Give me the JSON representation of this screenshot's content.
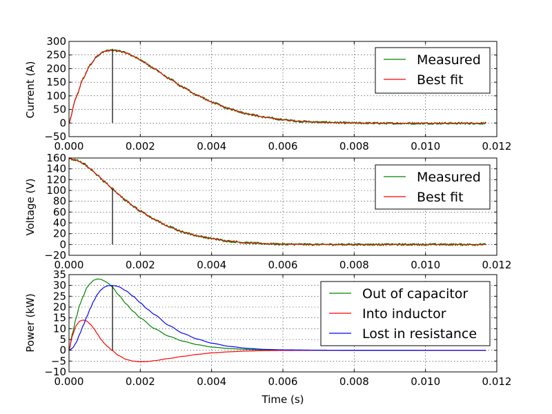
{
  "figure": {
    "xlabel": "Time (s)"
  },
  "colors": {
    "green": "#008000",
    "red": "#ff0000",
    "blue": "#0000ff",
    "marker": "#000000"
  },
  "chart_data": [
    {
      "type": "line",
      "ylabel": "Current (A)",
      "xlim": [
        0.0,
        0.012
      ],
      "ylim": [
        -50,
        300
      ],
      "xticks": [
        "0.000",
        "0.002",
        "0.004",
        "0.006",
        "0.008",
        "0.010",
        "0.012"
      ],
      "xtick_values": [
        0.0,
        0.002,
        0.004,
        0.006,
        0.008,
        0.01,
        0.012
      ],
      "yticks": [
        "−50",
        "0",
        "50",
        "100",
        "150",
        "200",
        "250",
        "300"
      ],
      "ytick_values": [
        -50,
        0,
        50,
        100,
        150,
        200,
        250,
        300
      ],
      "grid": true,
      "legend_position": "top-right",
      "marker_x": 0.00122,
      "marker_range": [
        0,
        268
      ],
      "series": [
        {
          "name": "Measured",
          "color": "green",
          "noisy": true,
          "x": [
            0.0,
            0.0002,
            0.0004,
            0.0006,
            0.0008,
            0.001,
            0.0012,
            0.0014,
            0.0016,
            0.0018,
            0.002,
            0.0024,
            0.0028,
            0.0032,
            0.0036,
            0.004,
            0.0045,
            0.005,
            0.0055,
            0.006,
            0.0065,
            0.007,
            0.008,
            0.009,
            0.01,
            0.0117
          ],
          "y": [
            0,
            95,
            165,
            215,
            248,
            264,
            268,
            265,
            258,
            246,
            232,
            199,
            164,
            131,
            102,
            77,
            52,
            34,
            21,
            12,
            6,
            3,
            0,
            -1,
            -1,
            -1
          ]
        },
        {
          "name": "Best fit",
          "color": "red",
          "noisy": false,
          "x": [
            0.0,
            0.0002,
            0.0004,
            0.0006,
            0.0008,
            0.001,
            0.0012,
            0.0014,
            0.0016,
            0.0018,
            0.002,
            0.0024,
            0.0028,
            0.0032,
            0.0036,
            0.004,
            0.0045,
            0.005,
            0.0055,
            0.006,
            0.0065,
            0.007,
            0.008,
            0.009,
            0.01,
            0.0117
          ],
          "y": [
            0,
            95,
            165,
            215,
            248,
            264,
            268,
            265,
            258,
            246,
            232,
            199,
            164,
            131,
            102,
            77,
            52,
            34,
            21,
            12,
            6,
            3,
            0,
            -1,
            -1,
            -1
          ]
        }
      ]
    },
    {
      "type": "line",
      "ylabel": "Voltage (V)",
      "xlim": [
        0.0,
        0.012
      ],
      "ylim": [
        -20,
        160
      ],
      "xticks": [
        "0.000",
        "0.002",
        "0.004",
        "0.006",
        "0.008",
        "0.010",
        "0.012"
      ],
      "xtick_values": [
        0.0,
        0.002,
        0.004,
        0.006,
        0.008,
        0.01,
        0.012
      ],
      "yticks": [
        "−20",
        "0",
        "20",
        "40",
        "60",
        "80",
        "100",
        "120",
        "140",
        "160"
      ],
      "ytick_values": [
        -20,
        0,
        20,
        40,
        60,
        80,
        100,
        120,
        140,
        160
      ],
      "grid": true,
      "legend_position": "top-right",
      "marker_x": 0.00122,
      "marker_range": [
        0,
        103
      ],
      "series": [
        {
          "name": "Measured",
          "color": "green",
          "noisy": true,
          "x": [
            0.0,
            0.0002,
            0.0004,
            0.0006,
            0.0008,
            0.001,
            0.0012,
            0.0014,
            0.0016,
            0.0018,
            0.002,
            0.0024,
            0.0028,
            0.0032,
            0.0036,
            0.004,
            0.0045,
            0.005,
            0.0055,
            0.006,
            0.007,
            0.008,
            0.01,
            0.0117
          ],
          "y": [
            159,
            156,
            150,
            140,
            128,
            116,
            104,
            92,
            81,
            71,
            62,
            46,
            33,
            23,
            16,
            11,
            6,
            3,
            1.5,
            0.5,
            0,
            0,
            0,
            0
          ]
        },
        {
          "name": "Best fit",
          "color": "red",
          "noisy": false,
          "x": [
            0.0,
            0.0002,
            0.0004,
            0.0006,
            0.0008,
            0.001,
            0.0012,
            0.0014,
            0.0016,
            0.0018,
            0.002,
            0.0024,
            0.0028,
            0.0032,
            0.0036,
            0.004,
            0.0045,
            0.005,
            0.0055,
            0.006,
            0.007,
            0.008,
            0.01,
            0.0117
          ],
          "y": [
            159,
            156,
            150,
            140,
            128,
            116,
            104,
            92,
            81,
            71,
            62,
            46,
            33,
            23,
            16,
            11,
            6,
            3,
            1.5,
            0.5,
            0,
            0,
            0,
            0
          ]
        }
      ]
    },
    {
      "type": "line",
      "ylabel": "Power (kW)",
      "xlim": [
        0.0,
        0.012
      ],
      "ylim": [
        -10,
        35
      ],
      "xticks": [
        "0.000",
        "0.002",
        "0.004",
        "0.006",
        "0.008",
        "0.010",
        "0.012"
      ],
      "xtick_values": [
        0.0,
        0.002,
        0.004,
        0.006,
        0.008,
        0.01,
        0.012
      ],
      "yticks": [
        "−10",
        "−5",
        "0",
        "5",
        "10",
        "15",
        "20",
        "25",
        "30",
        "35"
      ],
      "ytick_values": [
        -10,
        -5,
        0,
        5,
        10,
        15,
        20,
        25,
        30,
        35
      ],
      "grid": true,
      "legend_position": "top-right",
      "marker_x": 0.00122,
      "marker_range": [
        0,
        30
      ],
      "series": [
        {
          "name": "Out of capacitor",
          "color": "green",
          "noisy": false,
          "x": [
            0.0,
            0.0001,
            0.0002,
            0.0003,
            0.0004,
            0.0005,
            0.0006,
            0.0007,
            0.0008,
            0.0009,
            0.001,
            0.0011,
            0.0012,
            0.0014,
            0.0016,
            0.0018,
            0.002,
            0.0024,
            0.0028,
            0.0032,
            0.0036,
            0.004,
            0.0045,
            0.005,
            0.0055,
            0.006,
            0.007,
            0.008,
            0.01,
            0.0117
          ],
          "y": [
            0,
            8,
            15,
            21,
            25,
            29,
            31,
            32.5,
            33,
            32.8,
            32,
            31,
            29.5,
            25.5,
            21.5,
            18,
            15,
            10,
            6.5,
            4.2,
            2.6,
            1.5,
            0.8,
            0.4,
            0.2,
            0.08,
            0.02,
            0,
            0,
            0
          ]
        },
        {
          "name": "Into inductor",
          "color": "red",
          "noisy": false,
          "x": [
            0.0,
            0.0001,
            0.0002,
            0.0003,
            0.0004,
            0.0005,
            0.0006,
            0.0007,
            0.0008,
            0.0009,
            0.001,
            0.0011,
            0.0012,
            0.0014,
            0.0016,
            0.0018,
            0.002,
            0.0022,
            0.0024,
            0.0028,
            0.0032,
            0.0036,
            0.004,
            0.0045,
            0.005,
            0.0055,
            0.006,
            0.007,
            0.008,
            0.01,
            0.0117
          ],
          "y": [
            0,
            7,
            11.5,
            13.5,
            14,
            13.5,
            12,
            10,
            7.5,
            5,
            3,
            1.5,
            0,
            -2.5,
            -4.2,
            -5,
            -5.3,
            -5.2,
            -4.8,
            -3.8,
            -2.8,
            -1.9,
            -1.2,
            -0.7,
            -0.35,
            -0.15,
            -0.07,
            -0.01,
            0,
            0,
            0
          ]
        },
        {
          "name": "Lost in resistance",
          "color": "blue",
          "noisy": false,
          "x": [
            0.0,
            0.0001,
            0.0002,
            0.0003,
            0.0004,
            0.0005,
            0.0006,
            0.0007,
            0.0008,
            0.0009,
            0.001,
            0.0011,
            0.0012,
            0.0013,
            0.0014,
            0.0016,
            0.0018,
            0.002,
            0.0022,
            0.0024,
            0.0028,
            0.0032,
            0.0036,
            0.004,
            0.0045,
            0.005,
            0.0055,
            0.006,
            0.007,
            0.008,
            0.01,
            0.0117
          ],
          "y": [
            0,
            1,
            3.5,
            7.5,
            11.5,
            15.5,
            19.5,
            23,
            26,
            28,
            29.3,
            29.9,
            30,
            29.8,
            29.4,
            27.5,
            25,
            22,
            19,
            16.5,
            11.5,
            7.8,
            5.2,
            3.3,
            1.8,
            0.9,
            0.4,
            0.2,
            0.05,
            0.01,
            0,
            0
          ]
        }
      ]
    }
  ]
}
